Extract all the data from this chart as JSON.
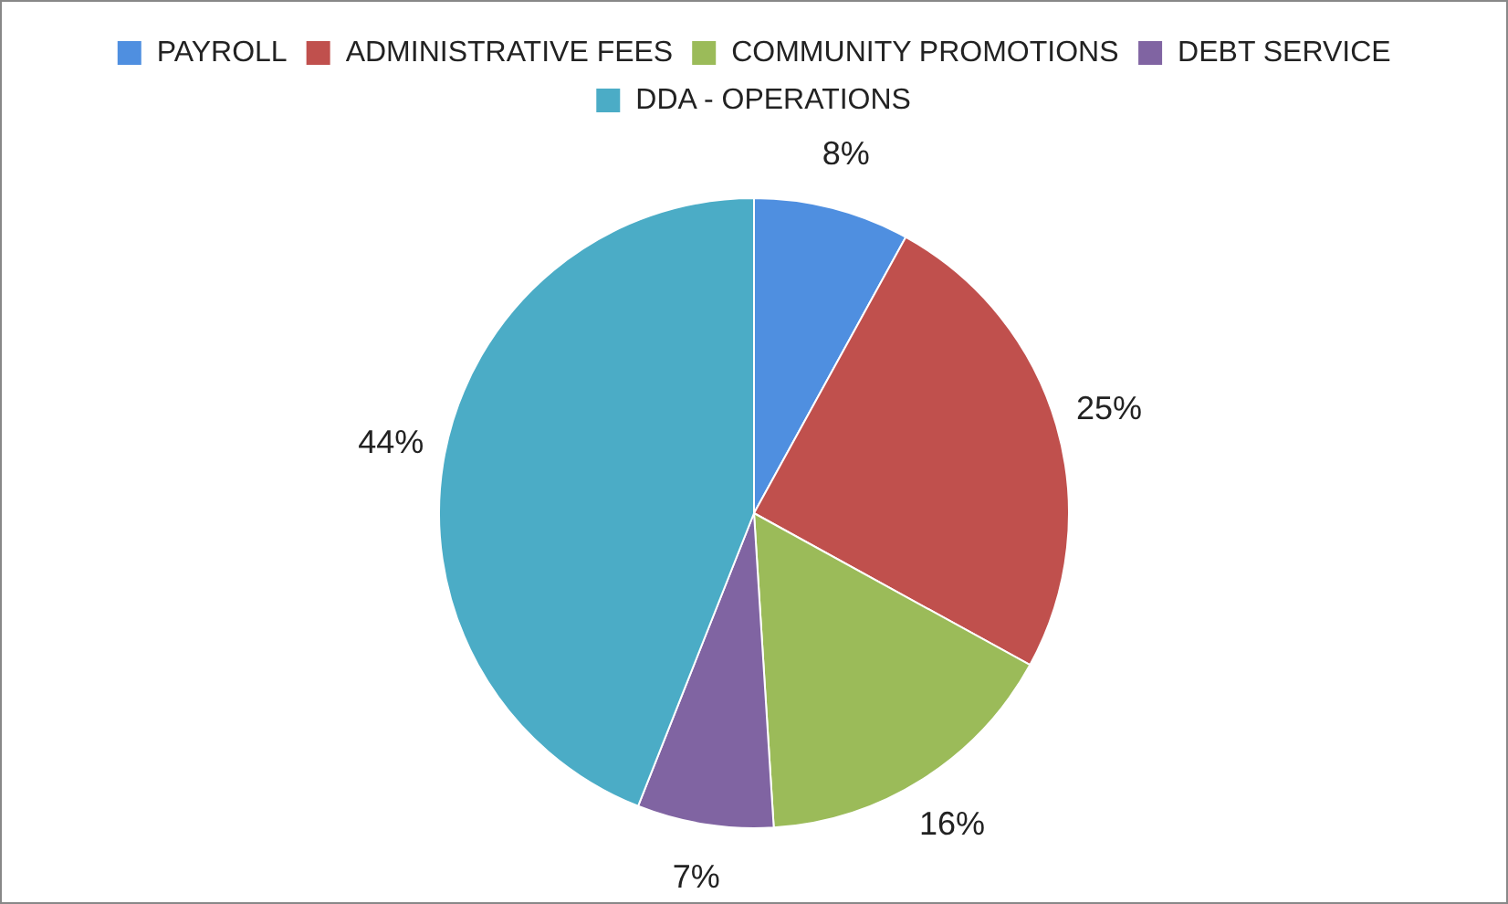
{
  "chart_data": {
    "type": "pie",
    "categories": [
      "PAYROLL",
      "ADMINISTRATIVE FEES",
      "COMMUNITY PROMOTIONS",
      "DEBT SERVICE",
      "DDA - OPERATIONS"
    ],
    "values": [
      8,
      25,
      16,
      7,
      44
    ],
    "colors": [
      "#4f8fe0",
      "#c0504d",
      "#9bbb59",
      "#8064a2",
      "#4bacc6"
    ],
    "value_labels": [
      "8%",
      "25%",
      "16%",
      "7%",
      "44%"
    ],
    "legend": "top"
  }
}
